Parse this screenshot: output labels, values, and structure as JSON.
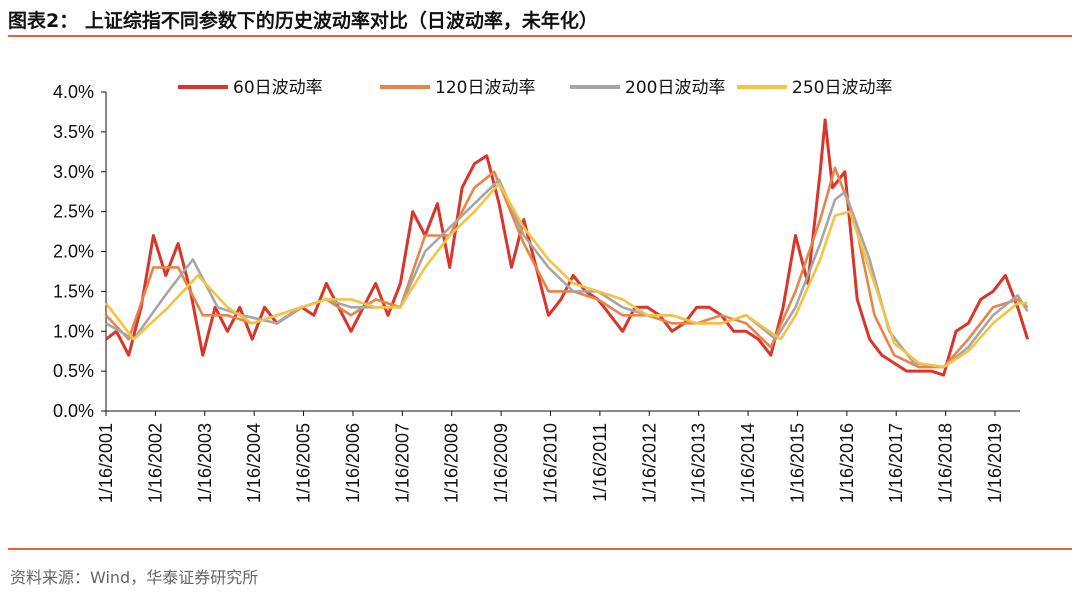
{
  "title": "图表2： 上证综指不同参数下的历史波动率对比（日波动率，未年化）",
  "source": "资料来源：Wind，华泰证券研究所",
  "chart_data": {
    "type": "line",
    "title": "图表2： 上证综指不同参数下的历史波动率对比（日波动率，未年化）",
    "xlabel": "",
    "ylabel": "",
    "ylim": [
      0,
      4
    ],
    "yticks": [
      "0.0%",
      "0.5%",
      "1.0%",
      "1.5%",
      "2.0%",
      "2.5%",
      "3.0%",
      "3.5%",
      "4.0%"
    ],
    "xticks": [
      "1/16/2001",
      "1/16/2002",
      "1/16/2003",
      "1/16/2004",
      "1/16/2005",
      "1/16/2006",
      "1/16/2007",
      "1/16/2008",
      "1/16/2009",
      "1/16/2010",
      "1/16/2011",
      "1/16/2012",
      "1/16/2013",
      "1/16/2014",
      "1/16/2015",
      "1/16/2016",
      "1/16/2017",
      "1/16/2018",
      "1/16/2019"
    ],
    "xrange": [
      2001.04,
      2019.75
    ],
    "legend_placement": "top",
    "grid": false,
    "series": [
      {
        "name": "60日波动率",
        "color": "#d9352a",
        "x": [
          2001.04,
          2001.25,
          2001.5,
          2001.75,
          2002.0,
          2002.25,
          2002.5,
          2002.75,
          2003.0,
          2003.25,
          2003.5,
          2003.75,
          2004.0,
          2004.25,
          2004.5,
          2004.75,
          2005.0,
          2005.25,
          2005.5,
          2005.75,
          2006.0,
          2006.25,
          2006.5,
          2006.75,
          2007.0,
          2007.25,
          2007.5,
          2007.75,
          2008.0,
          2008.25,
          2008.5,
          2008.75,
          2009.0,
          2009.25,
          2009.5,
          2009.75,
          2010.0,
          2010.25,
          2010.5,
          2010.75,
          2011.0,
          2011.25,
          2011.5,
          2011.75,
          2012.0,
          2012.25,
          2012.5,
          2012.75,
          2013.0,
          2013.25,
          2013.5,
          2013.75,
          2014.0,
          2014.25,
          2014.5,
          2014.75,
          2015.0,
          2015.25,
          2015.5,
          2015.6,
          2015.75,
          2016.0,
          2016.25,
          2016.5,
          2016.75,
          2017.0,
          2017.25,
          2017.5,
          2017.75,
          2018.0,
          2018.25,
          2018.5,
          2018.75,
          2019.0,
          2019.25,
          2019.5,
          2019.7
        ],
        "values": [
          0.9,
          1.0,
          0.7,
          1.3,
          2.2,
          1.7,
          2.1,
          1.5,
          0.7,
          1.3,
          1.0,
          1.3,
          0.9,
          1.3,
          1.1,
          1.2,
          1.3,
          1.2,
          1.6,
          1.3,
          1.0,
          1.3,
          1.6,
          1.2,
          1.6,
          2.5,
          2.2,
          2.6,
          1.8,
          2.8,
          3.1,
          3.2,
          2.6,
          1.8,
          2.4,
          1.8,
          1.2,
          1.4,
          1.7,
          1.5,
          1.4,
          1.2,
          1.0,
          1.3,
          1.3,
          1.2,
          1.0,
          1.1,
          1.3,
          1.3,
          1.2,
          1.0,
          1.0,
          0.9,
          0.7,
          1.3,
          2.2,
          1.6,
          3.0,
          3.65,
          2.8,
          3.0,
          1.4,
          0.9,
          0.7,
          0.6,
          0.5,
          0.5,
          0.5,
          0.45,
          1.0,
          1.1,
          1.4,
          1.5,
          1.7,
          1.3,
          0.9
        ]
      },
      {
        "name": "120日波动率",
        "color": "#e8834a",
        "x": [
          2001.04,
          2001.5,
          2002.0,
          2002.5,
          2003.0,
          2003.5,
          2004.0,
          2004.5,
          2005.0,
          2005.5,
          2006.0,
          2006.5,
          2007.0,
          2007.5,
          2008.0,
          2008.5,
          2008.9,
          2009.5,
          2010.0,
          2010.5,
          2011.0,
          2011.5,
          2012.0,
          2012.5,
          2013.0,
          2013.5,
          2014.0,
          2014.5,
          2015.0,
          2015.5,
          2015.8,
          2016.2,
          2016.6,
          2017.0,
          2017.5,
          2018.0,
          2018.5,
          2019.0,
          2019.5,
          2019.7
        ],
        "values": [
          1.2,
          0.9,
          1.8,
          1.8,
          1.2,
          1.2,
          1.1,
          1.2,
          1.3,
          1.4,
          1.2,
          1.4,
          1.3,
          2.2,
          2.2,
          2.8,
          3.0,
          2.1,
          1.5,
          1.5,
          1.4,
          1.2,
          1.2,
          1.1,
          1.1,
          1.2,
          1.1,
          0.8,
          1.5,
          2.4,
          3.05,
          2.4,
          1.2,
          0.7,
          0.55,
          0.55,
          0.9,
          1.3,
          1.4,
          1.3
        ]
      },
      {
        "name": "200日波动率",
        "color": "#a6a6a6",
        "x": [
          2001.04,
          2001.6,
          2002.3,
          2002.8,
          2003.3,
          2003.8,
          2004.5,
          2005.0,
          2005.5,
          2006.0,
          2006.5,
          2007.0,
          2007.5,
          2008.0,
          2008.5,
          2009.0,
          2009.5,
          2010.0,
          2010.5,
          2011.0,
          2011.5,
          2012.0,
          2012.5,
          2013.0,
          2013.5,
          2014.0,
          2014.6,
          2015.0,
          2015.5,
          2015.8,
          2016.0,
          2016.5,
          2016.9,
          2017.4,
          2018.0,
          2018.5,
          2019.0,
          2019.5,
          2019.7
        ],
        "values": [
          1.1,
          0.9,
          1.5,
          1.9,
          1.3,
          1.2,
          1.1,
          1.3,
          1.4,
          1.3,
          1.3,
          1.3,
          2.0,
          2.3,
          2.6,
          2.9,
          2.2,
          1.8,
          1.5,
          1.5,
          1.3,
          1.2,
          1.2,
          1.1,
          1.1,
          1.2,
          0.9,
          1.3,
          2.1,
          2.65,
          2.75,
          1.9,
          1.0,
          0.6,
          0.55,
          0.8,
          1.2,
          1.45,
          1.25
        ]
      },
      {
        "name": "250日波动率",
        "color": "#f5c242",
        "x": [
          2001.04,
          2001.6,
          2002.3,
          2002.9,
          2003.5,
          2004.0,
          2004.5,
          2005.0,
          2005.5,
          2006.0,
          2006.5,
          2007.0,
          2007.5,
          2008.0,
          2008.5,
          2009.0,
          2009.5,
          2010.0,
          2010.5,
          2011.0,
          2011.5,
          2012.0,
          2012.5,
          2013.0,
          2013.5,
          2014.0,
          2014.7,
          2015.0,
          2015.5,
          2015.8,
          2016.1,
          2016.6,
          2017.0,
          2017.5,
          2018.0,
          2018.5,
          2019.0,
          2019.5,
          2019.7
        ],
        "values": [
          1.35,
          0.9,
          1.3,
          1.7,
          1.3,
          1.1,
          1.2,
          1.3,
          1.4,
          1.4,
          1.3,
          1.3,
          1.8,
          2.2,
          2.5,
          2.85,
          2.3,
          1.9,
          1.6,
          1.5,
          1.4,
          1.2,
          1.2,
          1.1,
          1.1,
          1.2,
          0.9,
          1.2,
          1.9,
          2.45,
          2.5,
          1.6,
          0.85,
          0.6,
          0.55,
          0.75,
          1.1,
          1.35,
          1.35
        ]
      }
    ]
  }
}
